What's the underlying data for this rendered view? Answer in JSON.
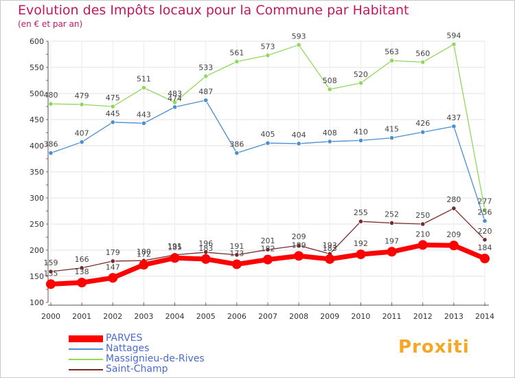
{
  "chart_data": {
    "type": "line",
    "title": "Evolution des Impôts locaux pour la Commune par Habitant",
    "subtitle": "(en € et par an)",
    "xlabel": "",
    "ylabel": "",
    "ylim": [
      100,
      600
    ],
    "y_ticks": [
      100,
      150,
      200,
      250,
      300,
      350,
      400,
      450,
      500,
      550,
      600
    ],
    "categories": [
      "2000",
      "2001",
      "2002",
      "2003",
      "2004",
      "2005",
      "2006",
      "2007",
      "2008",
      "2009",
      "2010",
      "2011",
      "2012",
      "2013",
      "2014"
    ],
    "grid": true,
    "legend_position": "bottom-left",
    "series": [
      {
        "name": "Saint-Champ",
        "color": "#7a2a2a",
        "values": [
          159,
          166,
          179,
          180,
          191,
          196,
          191,
          201,
          209,
          193,
          255,
          252,
          250,
          280,
          220
        ]
      },
      {
        "name": "Nattages",
        "color": "#4a8fd0",
        "values": [
          386,
          407,
          445,
          443,
          474,
          487,
          386,
          405,
          404,
          408,
          410,
          415,
          426,
          437,
          256
        ]
      },
      {
        "name": "Massignieu-de-Rives",
        "color": "#8fd85a",
        "values": [
          480,
          479,
          475,
          511,
          483,
          533,
          561,
          573,
          593,
          508,
          520,
          563,
          560,
          594,
          277
        ]
      },
      {
        "name": "PARVES",
        "color": "#ff0000",
        "values": [
          135,
          138,
          147,
          172,
          185,
          183,
          173,
          182,
          189,
          183,
          192,
          197,
          210,
          209,
          184
        ]
      }
    ]
  },
  "legend": {
    "items": [
      {
        "label": "PARVES",
        "color": "#ff0000",
        "color_name": "red"
      },
      {
        "label": "Nattages",
        "color": "#4a8fd0",
        "color_name": "blue"
      },
      {
        "label": "Massignieu-de-Rives",
        "color": "#8fd85a",
        "color_name": "green"
      },
      {
        "label": "Saint-Champ",
        "color": "#7a2a2a",
        "color_name": "brown"
      }
    ]
  },
  "logo": {
    "text": "Proxiti"
  }
}
